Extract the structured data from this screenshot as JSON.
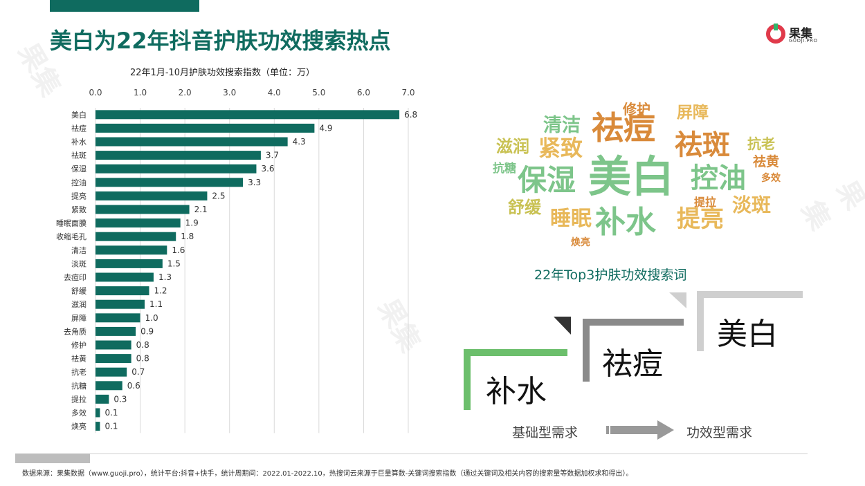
{
  "header": {
    "title": "美白为22年抖音护肤功效搜索热点",
    "logo_text": "果集",
    "logo_sub": "GUOJI.PRO"
  },
  "chart_data": {
    "type": "bar",
    "title": "22年1月-10月护肤功效搜索指数（单位：万）",
    "orientation": "horizontal",
    "xlim": [
      0,
      7.0
    ],
    "x_ticks": [
      "0.0",
      "1.0",
      "2.0",
      "3.0",
      "4.0",
      "5.0",
      "6.0",
      "7.0"
    ],
    "grid": true,
    "bar_color": "#0f6b5f",
    "categories": [
      "美白",
      "祛痘",
      "补水",
      "祛斑",
      "保湿",
      "控油",
      "提亮",
      "紧致",
      "睡眠面膜",
      "收缩毛孔",
      "清洁",
      "淡斑",
      "去痘印",
      "舒缓",
      "滋润",
      "屏障",
      "去角质",
      "修护",
      "祛黄",
      "抗老",
      "抗糖",
      "提拉",
      "多效",
      "焕亮"
    ],
    "values": [
      6.8,
      4.9,
      4.3,
      3.7,
      3.6,
      3.3,
      2.5,
      2.1,
      1.9,
      1.8,
      1.6,
      1.5,
      1.3,
      1.2,
      1.1,
      1.0,
      0.9,
      0.8,
      0.8,
      0.7,
      0.6,
      0.3,
      0.1,
      0.1
    ]
  },
  "wordcloud": {
    "words": [
      {
        "text": "美白",
        "color": "#7dc58a"
      },
      {
        "text": "祛痘",
        "color": "#d98a3a"
      },
      {
        "text": "祛斑",
        "color": "#d98a3a"
      },
      {
        "text": "保湿",
        "color": "#7dc58a"
      },
      {
        "text": "控油",
        "color": "#7dc58a"
      },
      {
        "text": "补水",
        "color": "#7dc58a"
      },
      {
        "text": "提亮",
        "color": "#e8b85a"
      },
      {
        "text": "紧致",
        "color": "#e8b85a"
      },
      {
        "text": "清洁",
        "color": "#7dc58a"
      },
      {
        "text": "睡眠",
        "color": "#e8b85a"
      },
      {
        "text": "淡斑",
        "color": "#e8b85a"
      },
      {
        "text": "滋润",
        "color": "#c9c254"
      },
      {
        "text": "舒缓",
        "color": "#c9c254"
      },
      {
        "text": "屏障",
        "color": "#e8b85a"
      },
      {
        "text": "修护",
        "color": "#d98a3a"
      },
      {
        "text": "抗老",
        "color": "#c9c254"
      },
      {
        "text": "祛黄",
        "color": "#d98a3a"
      },
      {
        "text": "抗糖",
        "color": "#7dc58a"
      },
      {
        "text": "多效",
        "color": "#d98a3a"
      },
      {
        "text": "提拉",
        "color": "#d98a3a"
      },
      {
        "text": "焕亮",
        "color": "#d98a3a"
      }
    ]
  },
  "top3": {
    "title": "22年Top3护肤功效搜索词",
    "steps": [
      {
        "text": "补水",
        "color": "#6cbf6c"
      },
      {
        "text": "祛痘",
        "color": "#8a8a8a"
      },
      {
        "text": "美白",
        "color": "#cfcfcf"
      }
    ],
    "left_label": "基础型需求",
    "right_label": "功效型需求"
  },
  "footer": {
    "text": "数据来源：果集数据（www.guoji.pro），统计平台:抖音+快手，统计周期间：2022.01-2022.10，热搜词云来源于巨量算数-关键词搜索指数（通过关键词及相关内容的搜索量等数据加权求和得出）。"
  }
}
